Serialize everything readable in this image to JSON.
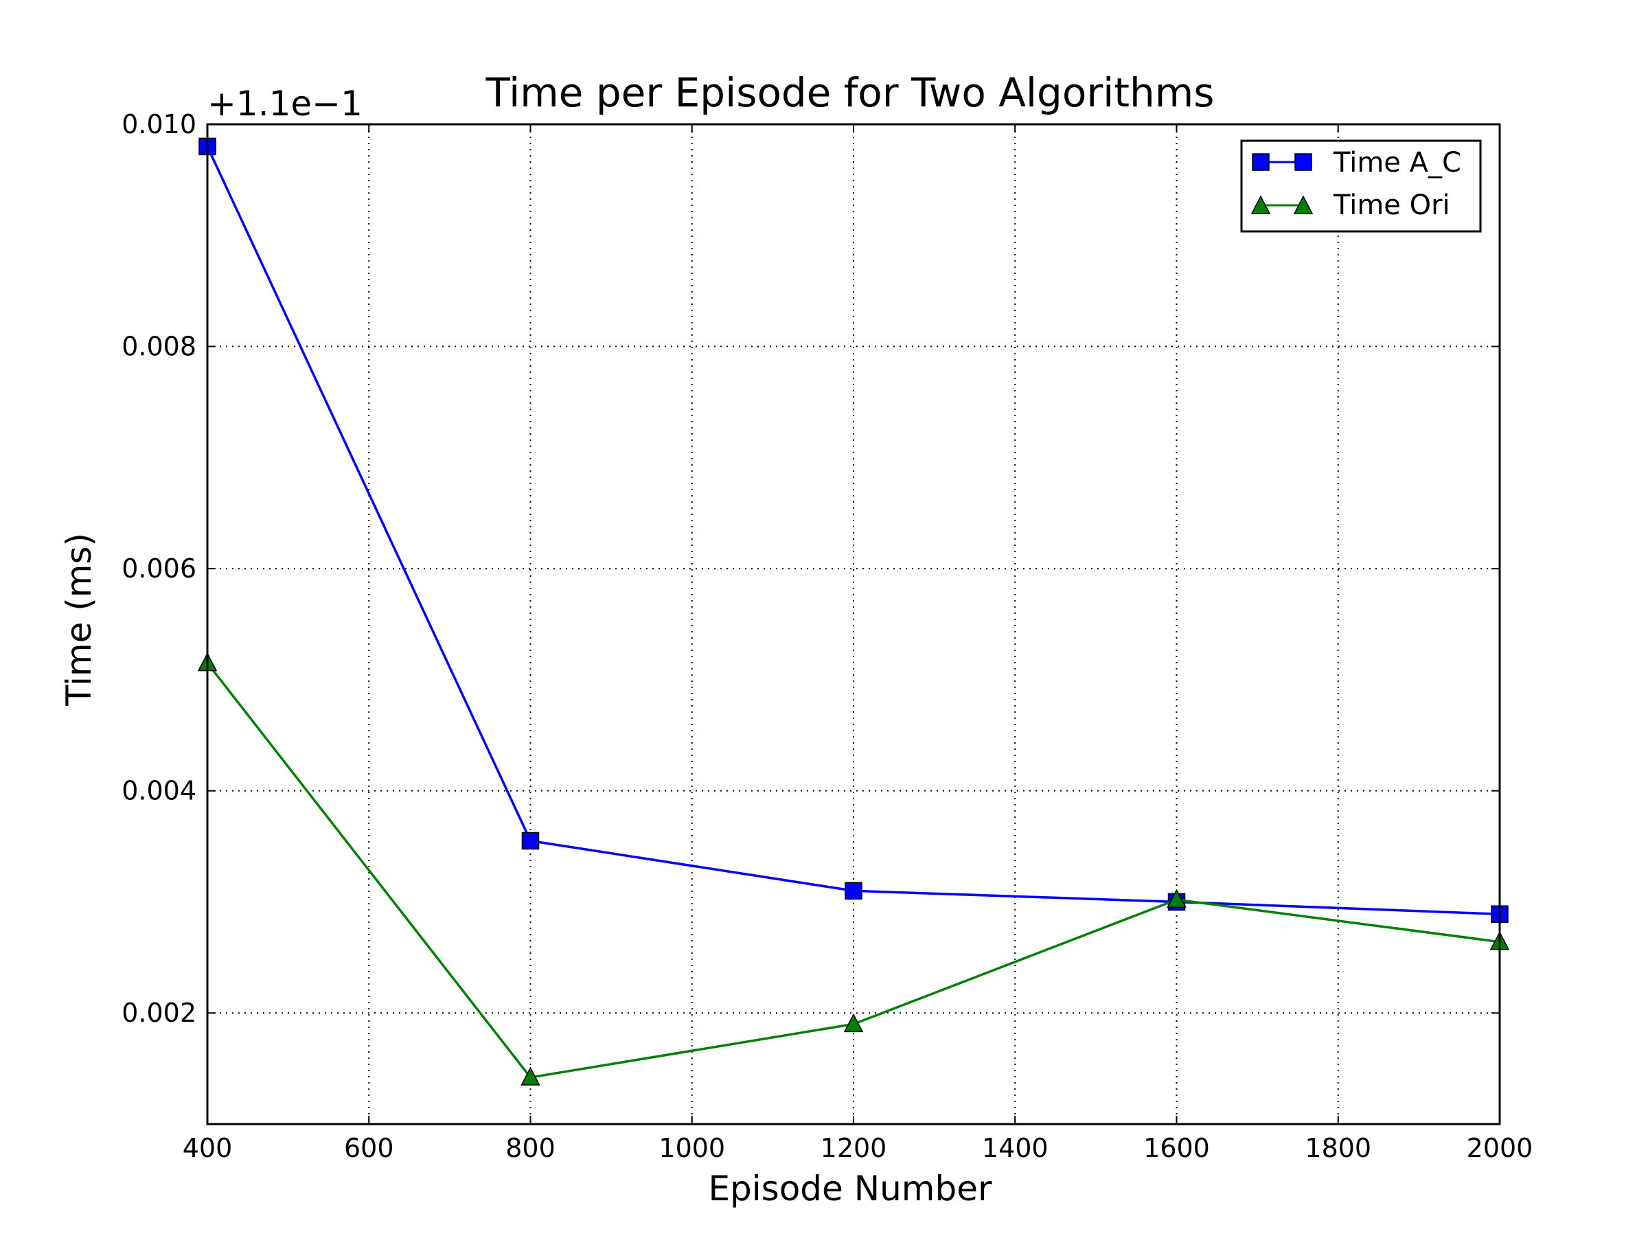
{
  "chart_data": {
    "type": "line",
    "title": "Time per Episode for Two Algorithms",
    "xlabel": "Episode Number",
    "ylabel": "Time (ms)",
    "y_offset_label": "+1.1e−1",
    "x": [
      400,
      800,
      1200,
      1600,
      2000
    ],
    "xlim": [
      400,
      2000
    ],
    "ylim": [
      0.001,
      0.01
    ],
    "xticks": [
      400,
      600,
      800,
      1000,
      1200,
      1400,
      1600,
      1800,
      2000
    ],
    "xtick_labels": [
      "400",
      "600",
      "800",
      "1000",
      "1200",
      "1400",
      "1600",
      "1800",
      "2000"
    ],
    "yticks": [
      0.002,
      0.004,
      0.006,
      0.008,
      0.01
    ],
    "ytick_labels": [
      "0.002",
      "0.004",
      "0.006",
      "0.008",
      "0.010"
    ],
    "grid": true,
    "legend_position": "top-right",
    "series": [
      {
        "name": "Time A_C",
        "color": "#0000ff",
        "marker": "square",
        "values": [
          0.0098,
          0.00355,
          0.0031,
          0.003,
          0.00289
        ]
      },
      {
        "name": "Time Ori",
        "color": "#008000",
        "marker": "triangle",
        "values": [
          0.00515,
          0.00142,
          0.0019,
          0.00302,
          0.00264
        ]
      }
    ]
  }
}
